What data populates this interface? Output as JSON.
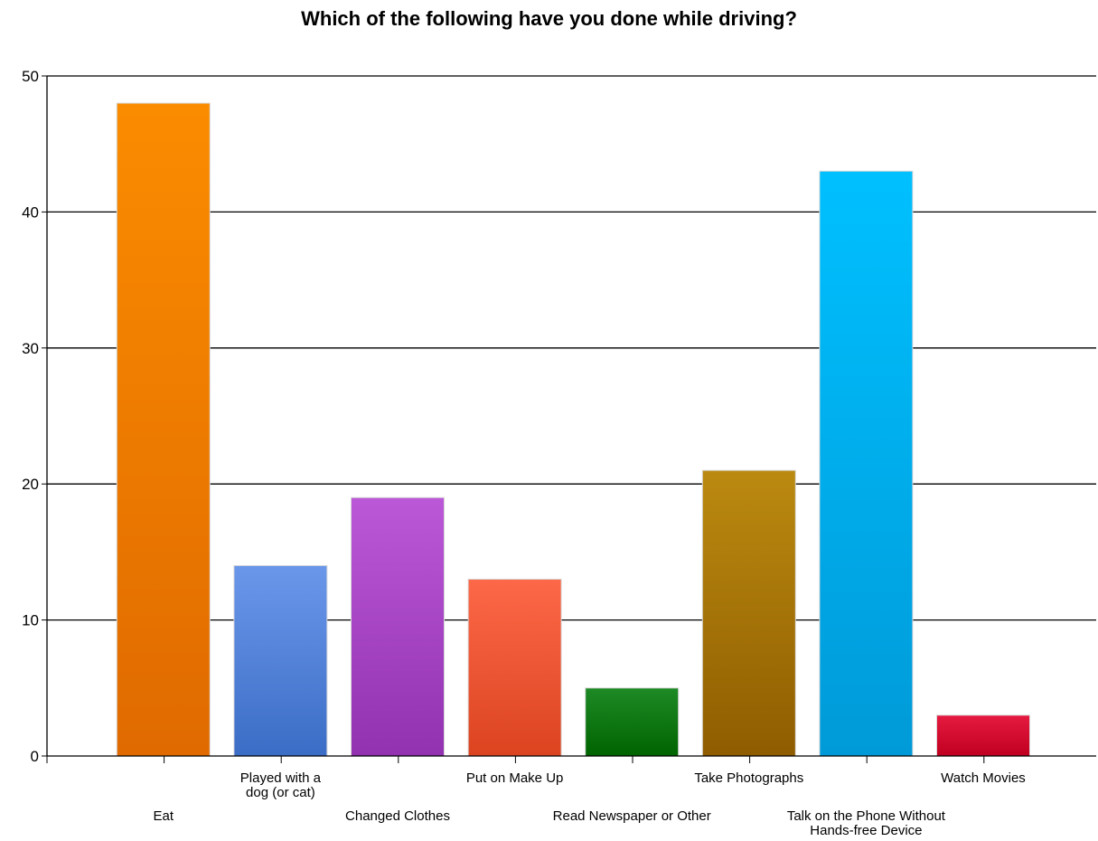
{
  "chart_data": {
    "type": "bar",
    "title": "Which of the following have you done while driving?",
    "xlabel": "",
    "ylabel": "",
    "ylim": [
      0,
      50
    ],
    "yticks": [
      0,
      10,
      20,
      30,
      40,
      50
    ],
    "grid": true,
    "categories": [
      "Eat",
      "Played with a dog (or cat)",
      "Changed Clothes",
      "Put on Make Up",
      "Read Newspaper or Other",
      "Take Photographs",
      "Talk on the Phone Without Hands-free Device",
      "Watch Movies"
    ],
    "category_label_lines": [
      [
        "Eat"
      ],
      [
        "Played with a",
        "dog (or cat)"
      ],
      [
        "Changed Clothes"
      ],
      [
        "Put on Make Up"
      ],
      [
        "Read Newspaper or Other"
      ],
      [
        "Take Photographs"
      ],
      [
        "Talk on the Phone Without",
        "Hands-free Device"
      ],
      [
        "Watch Movies"
      ]
    ],
    "values": [
      48,
      14,
      19,
      13,
      5,
      21,
      43,
      3
    ],
    "colors": [
      [
        "#fb8c00",
        "#e06a00"
      ],
      [
        "#6b97ea",
        "#3b6dc6"
      ],
      [
        "#bb58d8",
        "#9232b0"
      ],
      [
        "#fd6848",
        "#dc4420"
      ],
      [
        "#1e8a25",
        "#006400"
      ],
      [
        "#bb8a10",
        "#8f5d00"
      ],
      [
        "#00c0ff",
        "#009ad8"
      ],
      [
        "#e61a40",
        "#c00020"
      ]
    ]
  }
}
